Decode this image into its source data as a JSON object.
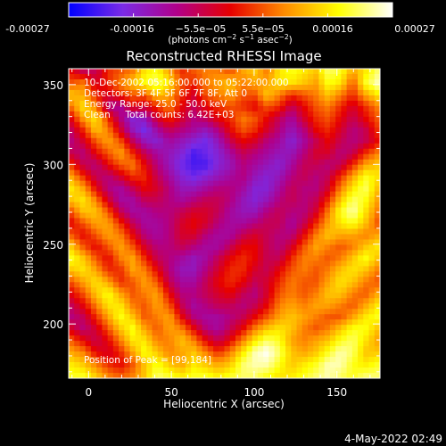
{
  "colorbar": {
    "ticks": [
      "-0.00027",
      "-0.00016",
      "−5.5e−05",
      "5.5e−05",
      "0.00016",
      "0.00027"
    ],
    "units_prefix": "(photons cm",
    "units_exp1": "−2",
    "units_mid": " s",
    "units_exp2": "−1",
    "units_mid2": " asec",
    "units_exp3": "−2",
    "units_suffix": ")"
  },
  "annotations": {
    "line1": "10-Dec-2002 05:16:00.000 to 05:22:00.000",
    "line2": "Detectors: 3F 4F 5F 6F 7F 8F, Att 0",
    "line3": "Energy Range: 25.0 - 50.0 keV",
    "line4": "Clean     Total counts: 6.42E+03",
    "peak": "Position of Peak = [99,184]"
  },
  "footer": {
    "timestamp": "4-May-2022 02:49"
  },
  "chart_data": {
    "type": "heatmap",
    "title": "Reconstructed RHESSI Image",
    "xlabel": "Heliocentric X (arcsec)",
    "ylabel": "Heliocentric Y (arcsec)",
    "xlim": [
      -12,
      176
    ],
    "ylim": [
      166,
      360
    ],
    "xticks": [
      0,
      50,
      100,
      150
    ],
    "yticks": [
      200,
      250,
      300,
      350
    ],
    "colorbar_range": [
      -0.00027,
      0.00027
    ],
    "colormap": "blue-purple-red-yellow-white",
    "colormap_stops": [
      "#0000ff",
      "#7a2be6",
      "#b0008a",
      "#e60000",
      "#ff8c00",
      "#ffff00",
      "#ffffff"
    ],
    "peak_position": [
      99,
      184
    ],
    "grid_cols": 26,
    "grid_rows": 27,
    "values": [
      [
        0.0,
        -0.2,
        -0.2,
        0.1,
        0.2,
        0.3,
        0.6,
        0.7,
        0.4,
        0.1,
        0.2,
        0.3,
        0.3,
        0.2,
        0.4,
        0.5,
        0.3,
        0.6,
        0.7,
        0.6,
        0.5,
        0.8,
        0.7,
        0.4,
        0.6,
        0.8
      ],
      [
        0.2,
        0.3,
        -0.1,
        0.1,
        0.3,
        0.5,
        0.7,
        0.8,
        0.6,
        0.2,
        0.1,
        0.3,
        0.4,
        0.5,
        0.3,
        0.4,
        0.4,
        0.6,
        0.6,
        0.5,
        0.4,
        0.7,
        0.6,
        0.2,
        0.7,
        0.9
      ],
      [
        0.5,
        0.4,
        0.1,
        -0.1,
        0.1,
        0.2,
        0.2,
        0.5,
        0.4,
        0.1,
        -0.1,
        0.2,
        0.3,
        0.4,
        0.2,
        0.2,
        0.5,
        0.3,
        0.1,
        0.2,
        0.3,
        0.5,
        0.3,
        0.1,
        0.4,
        0.6
      ],
      [
        0.3,
        0.6,
        0.3,
        -0.3,
        -0.4,
        0.0,
        -0.1,
        0.1,
        0.3,
        0.0,
        -0.2,
        0.0,
        0.1,
        0.2,
        0.1,
        0.0,
        0.2,
        0.1,
        -0.2,
        0.0,
        0.2,
        0.3,
        0.1,
        -0.1,
        0.1,
        0.3
      ],
      [
        0.0,
        0.4,
        0.6,
        0.1,
        -0.3,
        -0.6,
        -0.5,
        -0.1,
        0.1,
        -0.1,
        -0.3,
        -0.2,
        0.0,
        0.1,
        0.3,
        0.2,
        0.0,
        -0.2,
        -0.4,
        -0.1,
        0.1,
        0.2,
        0.0,
        -0.2,
        0.0,
        0.2
      ],
      [
        -0.2,
        0.1,
        0.5,
        0.3,
        -0.1,
        -0.5,
        -0.7,
        -0.4,
        -0.2,
        -0.3,
        -0.4,
        -0.5,
        -0.3,
        0.0,
        0.2,
        0.1,
        -0.1,
        -0.3,
        -0.5,
        -0.3,
        0.0,
        0.1,
        -0.1,
        -0.3,
        -0.2,
        0.1
      ],
      [
        -0.3,
        -0.1,
        0.2,
        0.4,
        0.2,
        -0.2,
        -0.5,
        -0.6,
        -0.4,
        -0.5,
        -0.6,
        -0.7,
        -0.5,
        -0.2,
        0.0,
        -0.1,
        -0.3,
        -0.4,
        -0.6,
        -0.4,
        -0.2,
        0.0,
        -0.2,
        -0.3,
        -0.2,
        0.0
      ],
      [
        -0.2,
        -0.3,
        0.0,
        0.2,
        0.4,
        0.1,
        -0.2,
        -0.4,
        -0.5,
        -0.6,
        -0.8,
        -0.7,
        -0.6,
        -0.4,
        -0.2,
        -0.3,
        -0.4,
        -0.5,
        -0.5,
        -0.3,
        -0.1,
        -0.1,
        -0.3,
        -0.2,
        0.1,
        0.3
      ],
      [
        0.1,
        -0.2,
        -0.3,
        0.0,
        0.2,
        0.3,
        0.0,
        -0.3,
        -0.5,
        -0.7,
        -0.8,
        -0.8,
        -0.6,
        -0.5,
        -0.3,
        -0.4,
        -0.5,
        -0.6,
        -0.4,
        -0.2,
        -0.2,
        -0.3,
        -0.2,
        0.1,
        0.4,
        0.5
      ],
      [
        0.4,
        0.1,
        -0.2,
        -0.3,
        -0.1,
        0.1,
        0.1,
        -0.2,
        -0.4,
        -0.6,
        -0.7,
        -0.6,
        -0.5,
        -0.4,
        -0.3,
        -0.5,
        -0.6,
        -0.5,
        -0.3,
        -0.2,
        -0.3,
        -0.2,
        0.1,
        0.4,
        0.7,
        0.6
      ],
      [
        0.6,
        0.4,
        0.0,
        -0.3,
        -0.4,
        -0.2,
        0.0,
        -0.1,
        -0.3,
        -0.5,
        -0.5,
        -0.4,
        -0.3,
        -0.3,
        -0.4,
        -0.6,
        -0.6,
        -0.4,
        -0.2,
        -0.3,
        -0.3,
        -0.1,
        0.3,
        0.6,
        0.8,
        0.5
      ],
      [
        0.5,
        0.6,
        0.3,
        -0.1,
        -0.4,
        -0.4,
        -0.2,
        -0.2,
        -0.3,
        -0.4,
        -0.3,
        -0.2,
        -0.2,
        -0.3,
        -0.5,
        -0.6,
        -0.5,
        -0.3,
        -0.2,
        -0.3,
        -0.2,
        0.1,
        0.5,
        0.8,
        0.7,
        0.4
      ],
      [
        0.2,
        0.5,
        0.5,
        0.2,
        -0.2,
        -0.4,
        -0.4,
        -0.3,
        -0.3,
        -0.2,
        -0.1,
        -0.1,
        -0.2,
        -0.4,
        -0.5,
        -0.5,
        -0.3,
        -0.2,
        -0.3,
        -0.3,
        -0.1,
        0.3,
        0.7,
        0.9,
        0.6,
        0.3
      ],
      [
        0.0,
        0.2,
        0.4,
        0.4,
        0.1,
        -0.2,
        -0.4,
        -0.4,
        -0.3,
        -0.1,
        0.0,
        -0.1,
        -0.3,
        -0.4,
        -0.4,
        -0.3,
        -0.2,
        -0.2,
        -0.4,
        -0.2,
        0.1,
        0.4,
        0.6,
        0.7,
        0.5,
        0.2
      ],
      [
        0.2,
        0.0,
        0.2,
        0.4,
        0.3,
        0.0,
        -0.3,
        -0.4,
        -0.3,
        -0.1,
        -0.1,
        -0.3,
        -0.4,
        -0.4,
        -0.2,
        -0.1,
        -0.2,
        -0.3,
        -0.3,
        0.0,
        0.3,
        0.5,
        0.4,
        0.4,
        0.3,
        0.4
      ],
      [
        0.5,
        0.2,
        0.0,
        0.2,
        0.4,
        0.2,
        -0.1,
        -0.3,
        -0.3,
        -0.2,
        -0.3,
        -0.4,
        -0.4,
        -0.2,
        0.0,
        0.0,
        -0.2,
        -0.3,
        -0.1,
        0.2,
        0.4,
        0.3,
        0.2,
        0.3,
        0.5,
        0.6
      ],
      [
        0.7,
        0.5,
        0.2,
        0.0,
        0.3,
        0.4,
        0.1,
        -0.2,
        -0.3,
        -0.4,
        -0.5,
        -0.4,
        -0.2,
        0.0,
        0.1,
        0.0,
        -0.2,
        -0.2,
        0.1,
        0.3,
        0.3,
        0.2,
        0.3,
        0.5,
        0.7,
        0.5
      ],
      [
        0.5,
        0.6,
        0.4,
        0.1,
        0.1,
        0.4,
        0.3,
        0.0,
        -0.3,
        -0.5,
        -0.5,
        -0.3,
        -0.1,
        0.1,
        0.1,
        -0.1,
        -0.2,
        0.0,
        0.2,
        0.3,
        0.2,
        0.3,
        0.5,
        0.6,
        0.5,
        0.3
      ],
      [
        0.2,
        0.4,
        0.6,
        0.4,
        0.1,
        0.2,
        0.4,
        0.2,
        -0.2,
        -0.4,
        -0.4,
        -0.2,
        0.0,
        0.1,
        0.0,
        -0.2,
        -0.1,
        0.1,
        0.3,
        0.2,
        0.2,
        0.4,
        0.6,
        0.5,
        0.3,
        0.2
      ],
      [
        0.0,
        0.2,
        0.5,
        0.7,
        0.4,
        0.2,
        0.3,
        0.4,
        0.0,
        -0.3,
        -0.3,
        -0.2,
        -0.1,
        0.0,
        -0.2,
        -0.3,
        -0.1,
        0.2,
        0.3,
        0.2,
        0.3,
        0.5,
        0.5,
        0.3,
        0.2,
        0.4
      ],
      [
        -0.2,
        0.0,
        0.3,
        0.6,
        0.6,
        0.3,
        0.2,
        0.4,
        0.2,
        -0.2,
        -0.4,
        -0.3,
        -0.2,
        -0.2,
        -0.3,
        -0.2,
        0.0,
        0.3,
        0.4,
        0.3,
        0.4,
        0.4,
        0.3,
        0.2,
        0.4,
        0.6
      ],
      [
        -0.3,
        -0.2,
        0.1,
        0.4,
        0.7,
        0.5,
        0.2,
        0.3,
        0.4,
        0.0,
        -0.3,
        -0.4,
        -0.4,
        -0.3,
        -0.2,
        0.0,
        0.2,
        0.4,
        0.5,
        0.4,
        0.3,
        0.2,
        0.2,
        0.4,
        0.6,
        0.7
      ],
      [
        -0.1,
        -0.3,
        -0.1,
        0.2,
        0.5,
        0.7,
        0.4,
        0.2,
        0.4,
        0.3,
        0.0,
        -0.3,
        -0.4,
        -0.2,
        0.0,
        0.3,
        0.5,
        0.6,
        0.5,
        0.3,
        0.2,
        0.3,
        0.5,
        0.7,
        0.7,
        0.5
      ],
      [
        0.2,
        0.0,
        -0.2,
        0.0,
        0.3,
        0.6,
        0.6,
        0.3,
        0.3,
        0.5,
        0.3,
        0.0,
        -0.2,
        0.0,
        0.3,
        0.6,
        0.8,
        0.7,
        0.4,
        0.3,
        0.4,
        0.5,
        0.7,
        0.8,
        0.6,
        0.4
      ],
      [
        0.4,
        0.3,
        0.0,
        -0.1,
        0.1,
        0.4,
        0.7,
        0.5,
        0.3,
        0.4,
        0.5,
        0.3,
        0.1,
        0.3,
        0.6,
        0.9,
        1.0,
        0.8,
        0.5,
        0.4,
        0.5,
        0.7,
        0.9,
        0.8,
        0.5,
        0.5
      ],
      [
        0.6,
        0.5,
        0.3,
        0.1,
        0.0,
        0.2,
        0.5,
        0.7,
        0.5,
        0.4,
        0.6,
        0.5,
        0.4,
        0.5,
        0.8,
        0.9,
        0.9,
        0.7,
        0.5,
        0.6,
        0.7,
        0.9,
        0.9,
        0.7,
        0.6,
        0.7
      ],
      [
        0.7,
        0.7,
        0.5,
        0.3,
        0.2,
        0.3,
        0.5,
        0.8,
        0.7,
        0.6,
        0.7,
        0.7,
        0.6,
        0.7,
        0.8,
        0.8,
        0.7,
        0.6,
        0.6,
        0.7,
        0.8,
        0.9,
        0.8,
        0.7,
        0.8,
        0.8
      ]
    ]
  }
}
